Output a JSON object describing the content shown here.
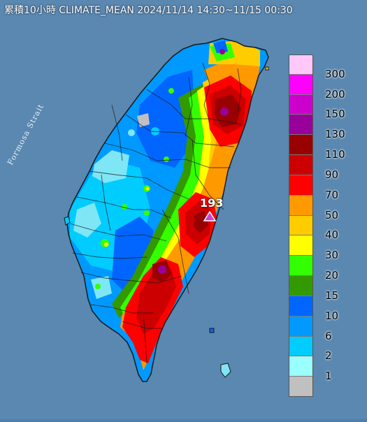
{
  "title": "累積10小時 CLIMATE_MEAN 2024/11/14 14:30~11/15 00:30",
  "water_label": "Formosa Strait",
  "peak": {
    "value": "193",
    "marker_color": "#cc44cc"
  },
  "legend": [
    {
      "label": "300",
      "color": "#ffc8f8"
    },
    {
      "label": "200",
      "color": "#ff00ff"
    },
    {
      "label": "150",
      "color": "#cc00cc"
    },
    {
      "label": "130",
      "color": "#990099"
    },
    {
      "label": "110",
      "color": "#990000"
    },
    {
      "label": "90",
      "color": "#cc0000"
    },
    {
      "label": "70",
      "color": "#ff0000"
    },
    {
      "label": "50",
      "color": "#ff9900"
    },
    {
      "label": "40",
      "color": "#ffcc00"
    },
    {
      "label": "30",
      "color": "#ffff00"
    },
    {
      "label": "20",
      "color": "#33ff00"
    },
    {
      "label": "15",
      "color": "#339900"
    },
    {
      "label": "10",
      "color": "#0066ff"
    },
    {
      "label": "6",
      "color": "#0099ff"
    },
    {
      "label": "2",
      "color": "#00ccff"
    },
    {
      "label": "1",
      "color": "#99ffff"
    },
    {
      "label": "",
      "color": "#c0c0c0"
    }
  ],
  "colors": {
    "sea": "#4f7fa8",
    "sea_light": "#6f9ac0",
    "outline": "#1a1a1a",
    "level_lightblue": "#7fe6f5",
    "level_cyan": "#00ccff",
    "level_blue": "#0099ff",
    "level_deepblue": "#0066ff",
    "level_darkgreen": "#339900",
    "level_green": "#33ff00",
    "level_yellow": "#ffff00",
    "level_gold": "#ffcc00",
    "level_orange": "#ff9900",
    "level_red": "#ff0000",
    "level_crimson": "#cc0000",
    "level_maroon": "#990000",
    "level_purple": "#990099",
    "level_gray": "#c0c0c0"
  }
}
